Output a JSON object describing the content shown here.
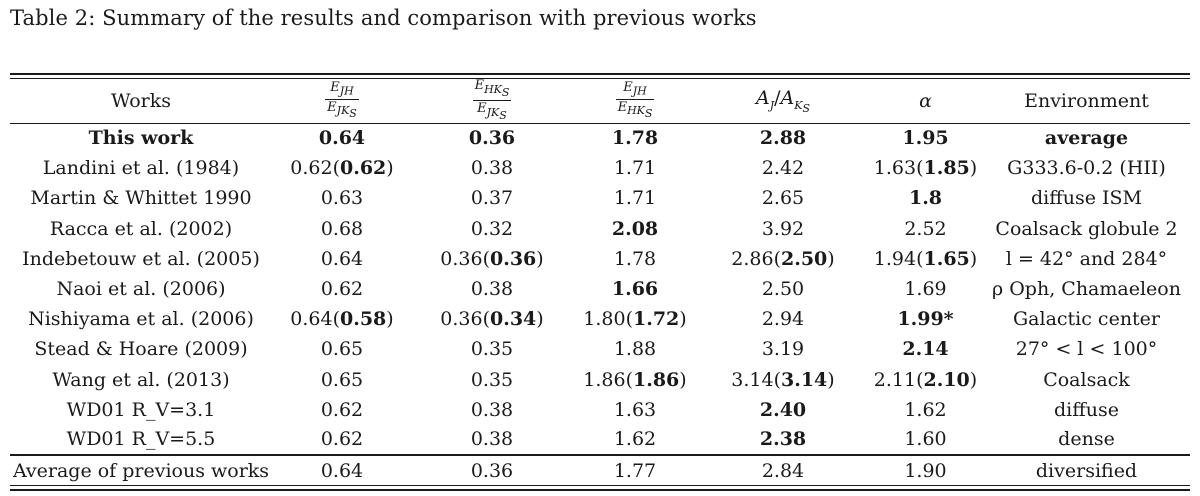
{
  "caption": "Table 2: Summary of the results and comparison with previous works",
  "headers": {
    "works": "Works",
    "col1": {
      "num": "E_JH",
      "den": "E_JKs"
    },
    "col2": {
      "num": "E_HKs",
      "den": "E_JKs"
    },
    "col3": {
      "num": "E_JH",
      "den": "E_HKs"
    },
    "col4": "A_J/A_Ks",
    "alpha": "α",
    "environment": "Environment"
  },
  "rows": [
    {
      "work": "This work",
      "c1": "0.64",
      "c2": "0.36",
      "c3": "1.78",
      "c4": "2.88",
      "alpha": "1.95",
      "env": "average"
    },
    {
      "work": "Landini et al. (1984)",
      "c1": "0.62(0.62)",
      "c2": "0.38",
      "c3": "1.71",
      "c4": "2.42",
      "alpha": "1.63(1.85)",
      "env": "G333.6-0.2 (HII)"
    },
    {
      "work": "Martin & Whittet 1990",
      "c1": "0.63",
      "c2": "0.37",
      "c3": "1.71",
      "c4": "2.65",
      "alpha": "1.8",
      "env": "diffuse ISM"
    },
    {
      "work": "Racca et al. (2002)",
      "c1": "0.68",
      "c2": "0.32",
      "c3": "2.08",
      "c4": "3.92",
      "alpha": "2.52",
      "env": "Coalsack globule 2"
    },
    {
      "work": "Indebetouw et al. (2005)",
      "c1": "0.64",
      "c2": "0.36(0.36)",
      "c3": "1.78",
      "c4": "2.86(2.50)",
      "alpha": "1.94(1.65)",
      "env": "l = 42° and 284°"
    },
    {
      "work": "Naoi et al. (2006)",
      "c1": "0.62",
      "c2": "0.38",
      "c3": "1.66",
      "c4": "2.50",
      "alpha": "1.69",
      "env": "ρ Oph, Chamaeleon"
    },
    {
      "work": "Nishiyama et al. (2006)",
      "c1": "0.64(0.58)",
      "c2": "0.36(0.34)",
      "c3": "1.80(1.72)",
      "c4": "2.94",
      "alpha": "1.99*",
      "env": "Galactic center"
    },
    {
      "work": "Stead & Hoare (2009)",
      "c1": "0.65",
      "c2": "0.35",
      "c3": "1.88",
      "c4": "3.19",
      "alpha": "2.14",
      "env": "27° < l < 100°"
    },
    {
      "work": "Wang et al. (2013)",
      "c1": "0.65",
      "c2": "0.35",
      "c3": "1.86(1.86)",
      "c4": "3.14(3.14)",
      "alpha": "2.11(2.10)",
      "env": "Coalsack"
    },
    {
      "work": "WD01 R_V=3.1",
      "c1": "0.62",
      "c2": "0.38",
      "c3": "1.63",
      "c4": "2.40",
      "alpha": "1.62",
      "env": "diffuse"
    },
    {
      "work": "WD01 R_V=5.5",
      "c1": "0.62",
      "c2": "0.38",
      "c3": "1.62",
      "c4": "2.38",
      "alpha": "1.60",
      "env": "dense"
    }
  ],
  "average": {
    "work": "Average of previous works",
    "c1": "0.64",
    "c2": "0.36",
    "c3": "1.77",
    "c4": "2.84",
    "alpha": "1.90",
    "env": "diversified"
  }
}
